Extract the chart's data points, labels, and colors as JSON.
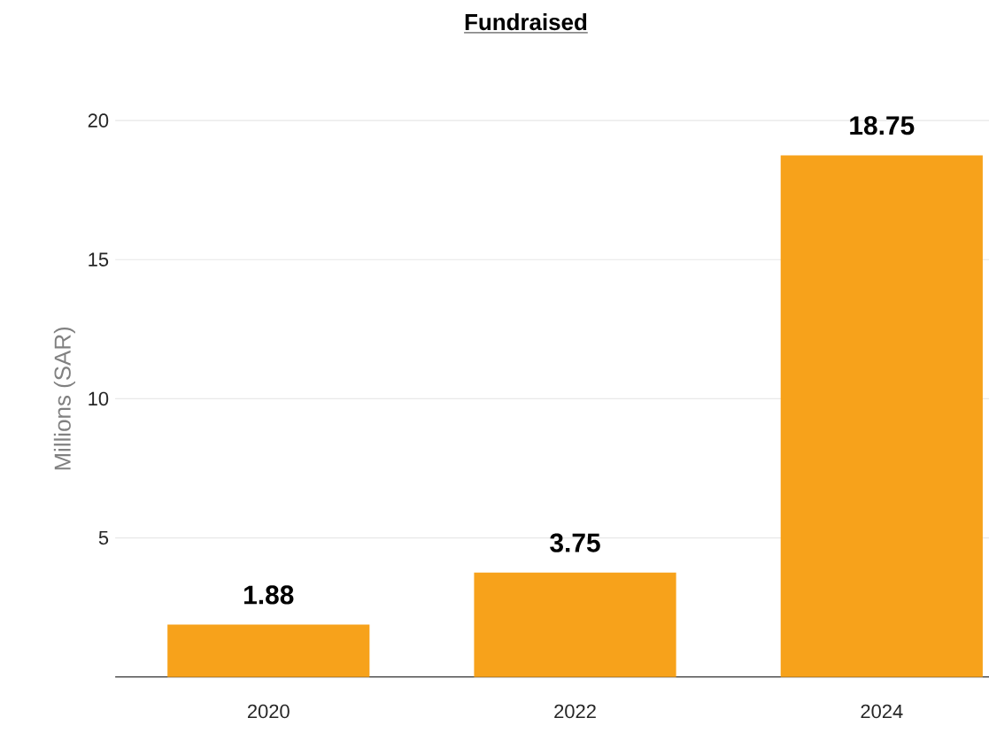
{
  "chart_data": {
    "type": "bar",
    "title": "Fundraised",
    "ylabel": "Millions (SAR)",
    "categories": [
      "2020",
      "2022",
      "2024"
    ],
    "values": [
      1.88,
      3.75,
      18.75
    ],
    "color": "#f7a21b",
    "ylim": [
      0,
      20
    ],
    "yticks": [
      5,
      10,
      15,
      20
    ],
    "grid": "y",
    "data_labels": true
  }
}
